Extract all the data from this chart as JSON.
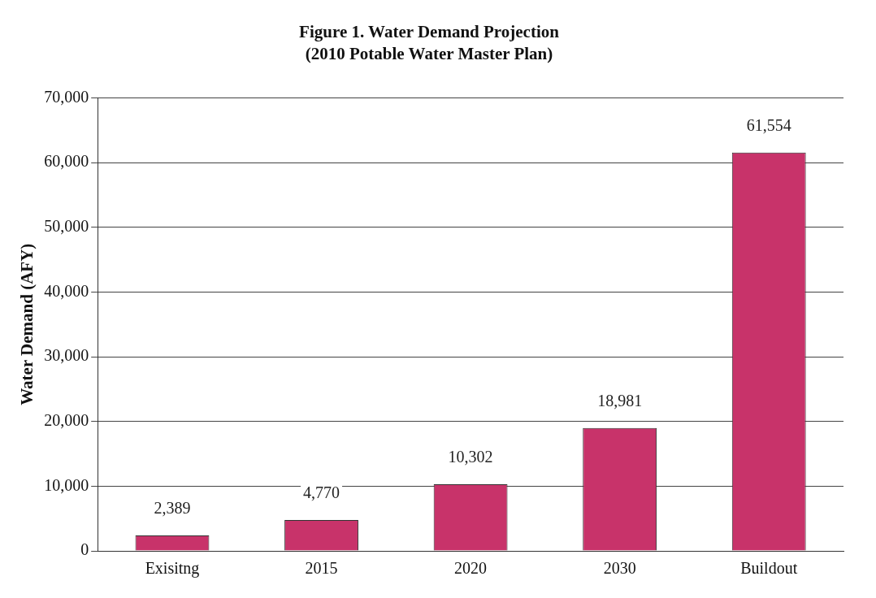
{
  "chart_data": {
    "type": "bar",
    "title": "Figure 1. Water Demand Projection",
    "subtitle": "(2010 Potable Water Master Plan)",
    "ylabel": "Water Demand (AFY)",
    "categories": [
      "Exisitng",
      "2015",
      "2020",
      "2030",
      "Buildout"
    ],
    "values": [
      2389,
      4770,
      10302,
      18981,
      61554
    ],
    "color": "#c8336a",
    "ylim": [
      0,
      70000
    ],
    "yticks": [
      0,
      {
        "value": 10000,
        "label": "10,000"
      },
      {
        "value": 20000,
        "label": "20,000"
      },
      {
        "value": 30000,
        "label": "30,000"
      },
      {
        "value": 40000,
        "label": "40,000"
      },
      {
        "value": 50000,
        "label": "50,000"
      },
      {
        "value": 60000,
        "label": "60,000"
      },
      {
        "value": 70000,
        "label": "70,000"
      }
    ],
    "value_labels": [
      "2,389",
      "4,770",
      "10,302",
      "18,981",
      "61,554"
    ],
    "grid": "y"
  }
}
